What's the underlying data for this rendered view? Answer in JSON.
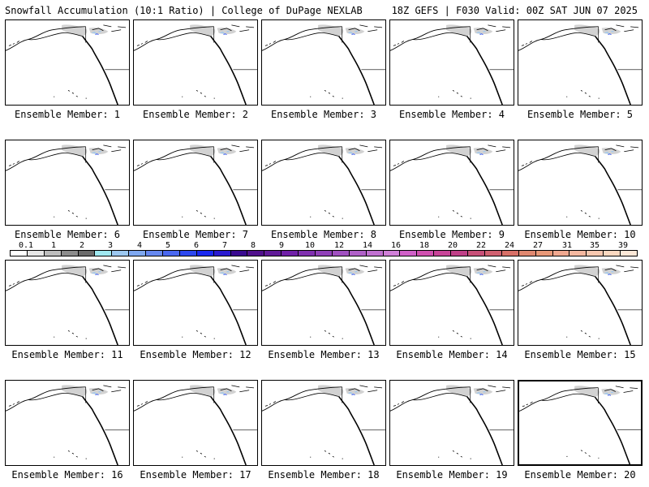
{
  "header": {
    "left_title": "Snowfall Accumulation (10:1 Ratio) | College of DuPage NEXLAB",
    "right_title": "18Z GEFS | F030 Valid: 00Z SAT JUN 07 2025"
  },
  "panels": [
    {
      "label": "Ensemble Member: 1"
    },
    {
      "label": "Ensemble Member: 2"
    },
    {
      "label": "Ensemble Member: 3"
    },
    {
      "label": "Ensemble Member: 4"
    },
    {
      "label": "Ensemble Member: 5"
    },
    {
      "label": "Ensemble Member: 6"
    },
    {
      "label": "Ensemble Member: 7"
    },
    {
      "label": "Ensemble Member: 8"
    },
    {
      "label": "Ensemble Member: 9"
    },
    {
      "label": "Ensemble Member: 10"
    },
    {
      "label": "Ensemble Member: 11"
    },
    {
      "label": "Ensemble Member: 12"
    },
    {
      "label": "Ensemble Member: 13"
    },
    {
      "label": "Ensemble Member: 14"
    },
    {
      "label": "Ensemble Member: 15"
    },
    {
      "label": "Ensemble Member: 16"
    },
    {
      "label": "Ensemble Member: 17"
    },
    {
      "label": "Ensemble Member: 18"
    },
    {
      "label": "Ensemble Member: 19"
    },
    {
      "label": "Ensemble Member: 20",
      "selected": true
    }
  ],
  "colorbar": {
    "ticks": [
      "0.1",
      "1",
      "2",
      "3",
      "4",
      "5",
      "6",
      "7",
      "8",
      "9",
      "10",
      "12",
      "14",
      "16",
      "18",
      "20",
      "22",
      "24",
      "27",
      "31",
      "35",
      "39"
    ],
    "colors": [
      "#ffffff",
      "#e6e6e6",
      "#bdbdbd",
      "#8c8c8c",
      "#6b6b6b",
      "#9fe8f0",
      "#9cc8f0",
      "#7fa8f0",
      "#6688f0",
      "#4a68f0",
      "#2d48f0",
      "#1a28f0",
      "#2a1ad0",
      "#3a0a90",
      "#50108c",
      "#601a98",
      "#7020a8",
      "#8030b0",
      "#9040b8",
      "#a050c0",
      "#b060c8",
      "#c070d0",
      "#d080d8",
      "#d060c8",
      "#d050b0",
      "#c84498",
      "#c04088",
      "#c85078",
      "#d06070",
      "#d87068",
      "#e08870",
      "#e89878",
      "#f0a890",
      "#f5b8a0",
      "#f8c8b0",
      "#fbd8c0",
      "#fde8d8"
    ]
  },
  "map_colors": {
    "coast": "#000000",
    "snow_gray": "#d2d2d2",
    "snow_light_blue": "#9cc8f0",
    "snow_blue": "#4a68f0",
    "snow_dark_blue": "#1a28f0"
  }
}
